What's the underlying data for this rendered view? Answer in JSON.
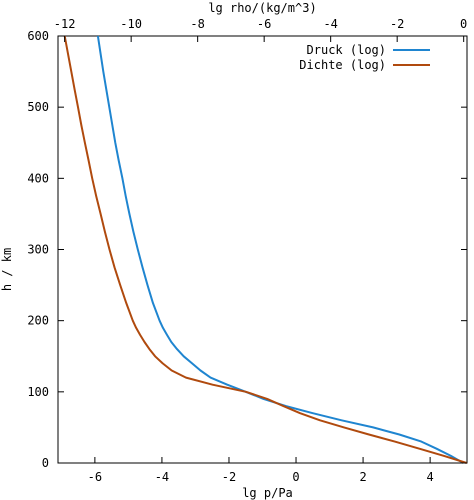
{
  "chart_data": {
    "type": "line",
    "x_bottom": {
      "label": "lg p/Pa",
      "range": [
        -7.1,
        5.1
      ],
      "ticks": [
        -6,
        -4,
        -2,
        0,
        2,
        4
      ],
      "tick_labels": [
        "-6",
        "-4",
        "-2",
        "0",
        "2",
        "4"
      ]
    },
    "x_top": {
      "label": "lg rho/(kg/m^3)",
      "range": [
        -12.2,
        0.1
      ],
      "ticks": [
        -12,
        -10,
        -8,
        -6,
        -4,
        -2,
        0
      ],
      "tick_labels": [
        "-12",
        "-10",
        "-8",
        "-6",
        "-4",
        "-2",
        "0"
      ]
    },
    "y": {
      "label": "h / km",
      "range": [
        0,
        600
      ],
      "ticks": [
        0,
        100,
        200,
        300,
        400,
        500,
        600
      ],
      "tick_labels": [
        "0",
        "100",
        "200",
        "300",
        "400",
        "500",
        "600"
      ]
    },
    "grid": false,
    "legend_position": "top-right",
    "series": [
      {
        "name": "Druck (log)",
        "axis": "bottom",
        "color": "#1f85d0",
        "points": [
          [
            4.99,
            0
          ],
          [
            4.62,
            10
          ],
          [
            4.2,
            20
          ],
          [
            3.74,
            30
          ],
          [
            3.08,
            40
          ],
          [
            2.3,
            50
          ],
          [
            1.36,
            60
          ],
          [
            0.5,
            70
          ],
          [
            -0.3,
            80
          ],
          [
            -0.97,
            90
          ],
          [
            -1.5,
            100
          ],
          [
            -2.05,
            110
          ],
          [
            -2.55,
            120
          ],
          [
            -2.85,
            130
          ],
          [
            -3.1,
            140
          ],
          [
            -3.35,
            150
          ],
          [
            -3.55,
            160
          ],
          [
            -3.72,
            170
          ],
          [
            -3.85,
            180
          ],
          [
            -3.97,
            190
          ],
          [
            -4.07,
            200
          ],
          [
            -4.27,
            225
          ],
          [
            -4.43,
            250
          ],
          [
            -4.58,
            275
          ],
          [
            -4.72,
            300
          ],
          [
            -4.85,
            325
          ],
          [
            -4.97,
            350
          ],
          [
            -5.08,
            375
          ],
          [
            -5.18,
            400
          ],
          [
            -5.29,
            425
          ],
          [
            -5.39,
            450
          ],
          [
            -5.48,
            475
          ],
          [
            -5.57,
            500
          ],
          [
            -5.66,
            525
          ],
          [
            -5.75,
            550
          ],
          [
            -5.83,
            575
          ],
          [
            -5.91,
            600
          ]
        ]
      },
      {
        "name": "Dichte (log)",
        "axis": "top",
        "color": "#b04a0e",
        "points": [
          [
            0.09,
            0
          ],
          [
            -0.59,
            10
          ],
          [
            -1.32,
            20
          ],
          [
            -2.07,
            30
          ],
          [
            -2.85,
            40
          ],
          [
            -3.6,
            50
          ],
          [
            -4.32,
            60
          ],
          [
            -4.92,
            70
          ],
          [
            -5.42,
            80
          ],
          [
            -5.91,
            90
          ],
          [
            -6.55,
            100
          ],
          [
            -7.55,
            110
          ],
          [
            -8.35,
            120
          ],
          [
            -8.78,
            130
          ],
          [
            -9.05,
            140
          ],
          [
            -9.28,
            150
          ],
          [
            -9.45,
            160
          ],
          [
            -9.6,
            170
          ],
          [
            -9.73,
            180
          ],
          [
            -9.85,
            190
          ],
          [
            -9.95,
            200
          ],
          [
            -10.15,
            225
          ],
          [
            -10.33,
            250
          ],
          [
            -10.5,
            275
          ],
          [
            -10.65,
            300
          ],
          [
            -10.79,
            325
          ],
          [
            -10.92,
            350
          ],
          [
            -11.05,
            375
          ],
          [
            -11.17,
            400
          ],
          [
            -11.28,
            425
          ],
          [
            -11.39,
            450
          ],
          [
            -11.5,
            475
          ],
          [
            -11.6,
            500
          ],
          [
            -11.7,
            525
          ],
          [
            -11.8,
            550
          ],
          [
            -11.9,
            575
          ],
          [
            -12.0,
            600
          ]
        ]
      }
    ]
  }
}
